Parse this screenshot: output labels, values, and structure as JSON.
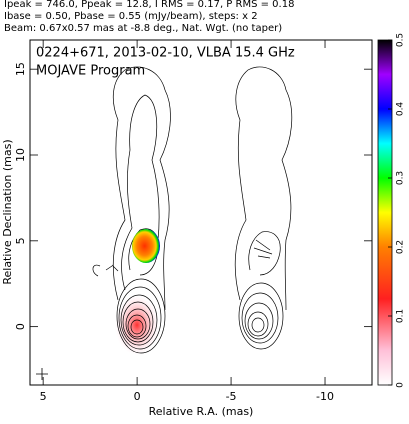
{
  "chart_data": {
    "type": "contour",
    "header": [
      "Ipeak = 746.0, Ppeak = 12.8, I RMS = 0.17, P RMS = 0.18",
      "Ibase = 0.50, Pbase = 0.55 (mJy/beam), steps: x 2",
      "Beam: 0.67x0.57 mas at -8.8 deg., Nat. Wgt. (no taper)"
    ],
    "annotations": [
      "0224+671, 2013-02-10, VLBA 15.4 GHz",
      "MOJAVE Program"
    ],
    "xlabel": "Relative R.A. (mas)",
    "ylabel": "Relative Declination (mas)",
    "xlim": [
      5.7,
      -12.5
    ],
    "xticks": [
      5,
      0,
      -5,
      -10
    ],
    "ylim": [
      -3.4,
      16.7
    ],
    "yticks": [
      0,
      5,
      10,
      15
    ],
    "colorbar_lim": [
      0,
      0.5
    ],
    "colorbar_ticks": [
      0,
      0.1,
      0.2,
      0.3,
      0.4,
      0.5
    ]
  }
}
